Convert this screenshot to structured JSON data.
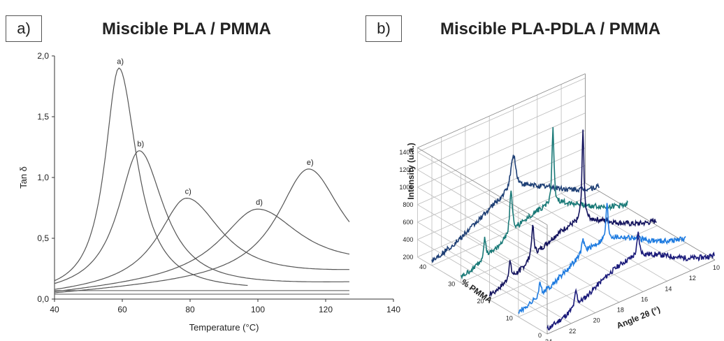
{
  "panels": {
    "a_label": "a)",
    "b_label": "b)",
    "a_title": "Miscible PLA / PMMA",
    "b_title": "Miscible PLA-PDLA / PMMA"
  },
  "chart_data": [
    {
      "type": "line",
      "title": "Miscible PLA / PMMA",
      "xlabel": "Temperature (°C)",
      "ylabel": "Tan δ",
      "xlim": [
        40,
        140
      ],
      "ylim": [
        0,
        2.0
      ],
      "xticks": [
        "40",
        "60",
        "80",
        "100",
        "120",
        "140"
      ],
      "yticks": [
        "0,0",
        "0,5",
        "1,0",
        "1,5",
        "2,0"
      ],
      "grid": false,
      "series": [
        {
          "name": "a)",
          "peak_x": 59,
          "peak_y": 1.9,
          "tail_y": 0.06
        },
        {
          "name": "b)",
          "peak_x": 65,
          "peak_y": 1.22,
          "tail_y": 0.12
        },
        {
          "name": "c)",
          "peak_x": 79,
          "peak_y": 0.83,
          "tail_y": 0.2
        },
        {
          "name": "d)",
          "peak_x": 100,
          "peak_y": 0.74,
          "tail_y": 0.24
        },
        {
          "name": "e)",
          "peak_x": 115,
          "peak_y": 1.07,
          "tail_y": 0.2
        }
      ]
    },
    {
      "type": "line",
      "title": "Miscible PLA-PDLA / PMMA",
      "xlabel": "Angle 2θ (°)",
      "ylabel": "Intensity (u.a.)",
      "zlabel": "% PMMA",
      "xticks": [
        "24",
        "22",
        "20",
        "18",
        "16",
        "14",
        "12",
        "10"
      ],
      "zticks": [
        "0",
        "10",
        "20",
        "30",
        "40"
      ],
      "yticks": [
        "200",
        "400",
        "600",
        "800",
        "1000",
        "1200",
        "1400"
      ],
      "series": [
        {
          "pmma": 0,
          "color": "#1a1a7a"
        },
        {
          "pmma": 10,
          "color": "#1e7be0"
        },
        {
          "pmma": 20,
          "color": "#14145e"
        },
        {
          "pmma": 30,
          "color": "#1a7a78"
        },
        {
          "pmma": 40,
          "color": "#1e3f75"
        }
      ]
    }
  ]
}
